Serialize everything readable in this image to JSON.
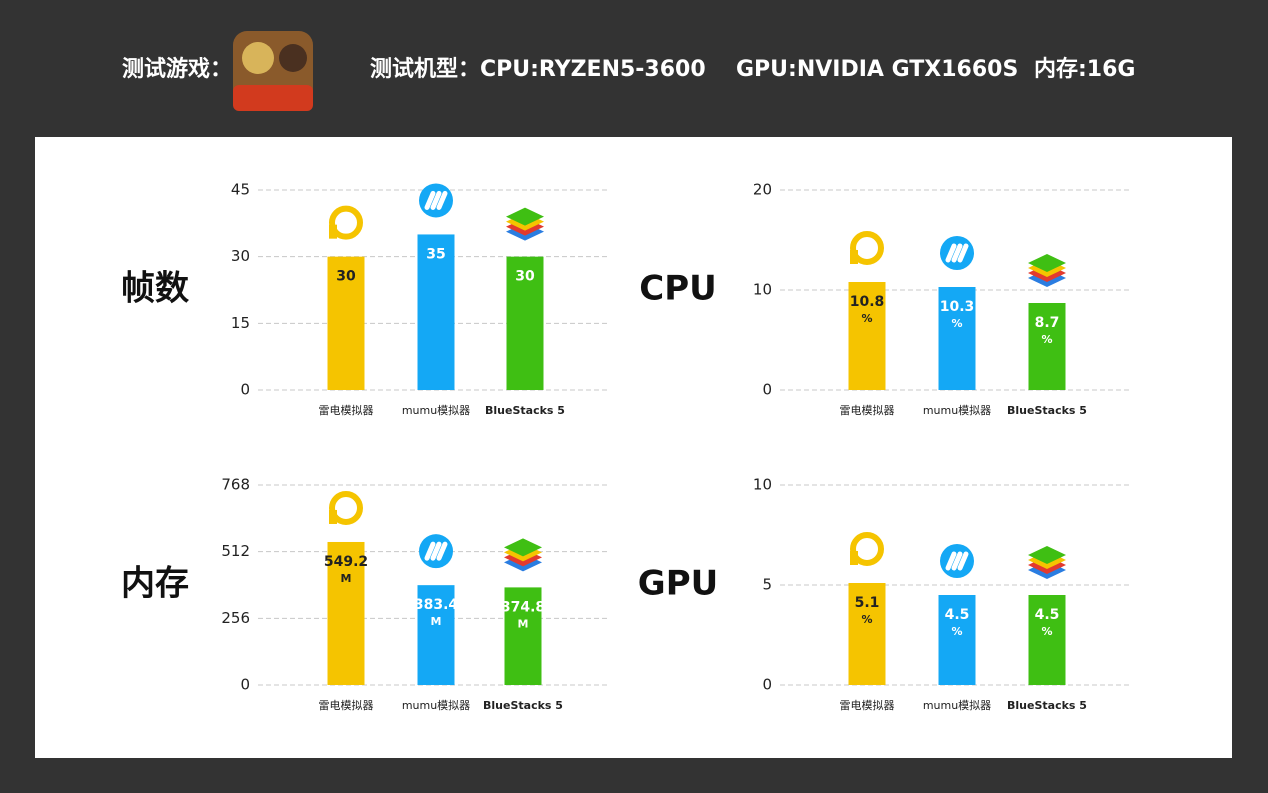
{
  "header": {
    "game_label": "测试游戏：",
    "device_label": "测试机型：",
    "cpu": "CPU:RYZEN5-3600",
    "gpu": "GPU:NVIDIA GTX1660S",
    "memory": "内存:16G"
  },
  "chart_data": [
    {
      "type": "bar",
      "title": "帧数",
      "categories": [
        "雷电模拟器",
        "mumu模拟器",
        "BlueStacks 5"
      ],
      "values": [
        30,
        35,
        30
      ],
      "colors": [
        "#f5c400",
        "#14a8f5",
        "#3fbf13"
      ],
      "ylim": [
        0,
        45
      ],
      "yticks": [
        0,
        15,
        30,
        45
      ],
      "grid": true
    },
    {
      "type": "bar",
      "title": "CPU",
      "categories": [
        "雷电模拟器",
        "mumu模拟器",
        "BlueStacks 5"
      ],
      "values": [
        10.8,
        10.3,
        8.7
      ],
      "unit": "%",
      "colors": [
        "#f5c400",
        "#14a8f5",
        "#3fbf13"
      ],
      "ylim": [
        0,
        20
      ],
      "yticks": [
        0,
        10,
        20
      ],
      "grid": true
    },
    {
      "type": "bar",
      "title": "内存",
      "categories": [
        "雷电模拟器",
        "mumu模拟器",
        "BlueStacks 5"
      ],
      "values": [
        549.2,
        383.4,
        374.8
      ],
      "unit": "M",
      "colors": [
        "#f5c400",
        "#14a8f5",
        "#3fbf13"
      ],
      "ylim": [
        0,
        768
      ],
      "yticks": [
        0,
        256,
        512,
        768
      ],
      "grid": true
    },
    {
      "type": "bar",
      "title": "GPU",
      "categories": [
        "雷电模拟器",
        "mumu模拟器",
        "BlueStacks 5"
      ],
      "values": [
        5.1,
        4.5,
        4.5
      ],
      "unit": "%",
      "colors": [
        "#f5c400",
        "#14a8f5",
        "#3fbf13"
      ],
      "ylim": [
        0,
        10
      ],
      "yticks": [
        0,
        5,
        10
      ],
      "grid": true
    }
  ]
}
